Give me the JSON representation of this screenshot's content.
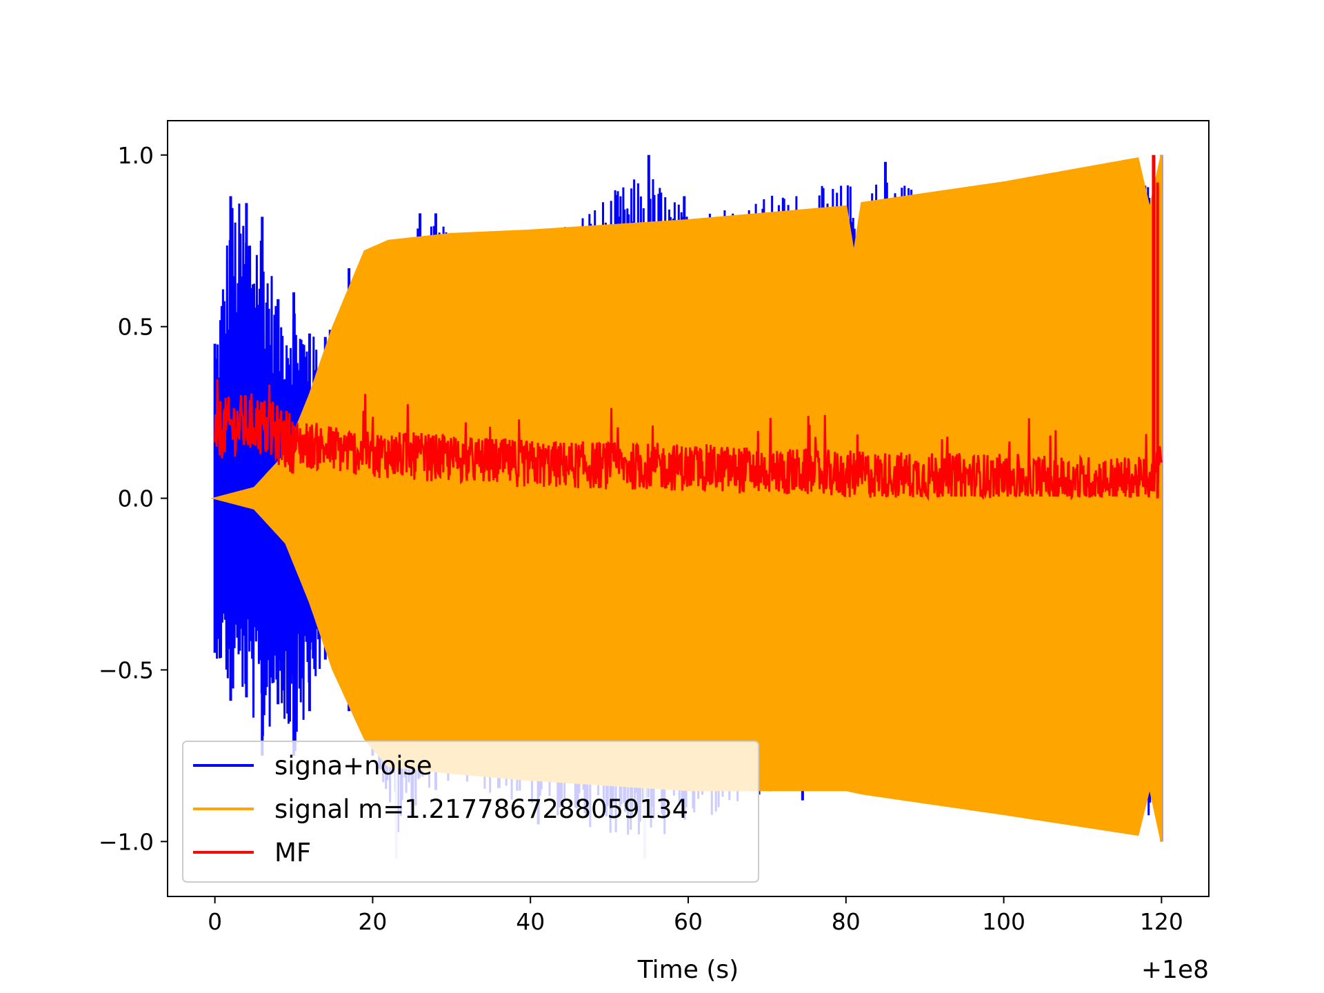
{
  "chart_data": {
    "type": "line",
    "title": "",
    "xlabel": "Time (s)",
    "ylabel": "",
    "x_offset_label": "+1e8",
    "xlim": [
      -6,
      126
    ],
    "ylim": [
      -1.16,
      1.1
    ],
    "grid": false,
    "legend_position": "lower-left",
    "x_ticks": [
      0,
      20,
      40,
      60,
      80,
      100,
      120
    ],
    "x_tick_labels": [
      "0",
      "20",
      "40",
      "60",
      "80",
      "100",
      "120"
    ],
    "y_ticks": [
      -1.0,
      -0.5,
      0.0,
      0.5,
      1.0
    ],
    "y_tick_labels": [
      "−1.0",
      "−0.5",
      "0.0",
      "0.5",
      "1.0"
    ],
    "series": [
      {
        "name": "signa+noise",
        "color": "#0000ff",
        "x_range": [
          0,
          120
        ],
        "envelope_upper": [
          [
            0,
            0.45
          ],
          [
            2,
            0.88
          ],
          [
            4,
            0.86
          ],
          [
            6,
            0.82
          ],
          [
            8,
            0.58
          ],
          [
            10,
            0.6
          ],
          [
            12,
            0.48
          ],
          [
            14,
            0.47
          ],
          [
            17,
            0.67
          ],
          [
            20,
            0.73
          ],
          [
            26,
            0.83
          ],
          [
            28,
            0.83
          ],
          [
            40,
            0.78
          ],
          [
            55,
            1.0
          ],
          [
            59.5,
            0.88
          ],
          [
            85,
            0.98
          ],
          [
            100,
            0.9
          ],
          [
            120,
            1.0
          ]
        ],
        "envelope_lower": [
          [
            0,
            -0.45
          ],
          [
            2,
            -0.59
          ],
          [
            4,
            -0.58
          ],
          [
            6,
            -0.75
          ],
          [
            8,
            -0.6
          ],
          [
            10,
            -0.75
          ],
          [
            12,
            -0.62
          ],
          [
            14,
            -0.47
          ],
          [
            17,
            -0.62
          ],
          [
            20,
            -0.75
          ],
          [
            23,
            -1.05
          ],
          [
            28,
            -0.85
          ],
          [
            41,
            -0.95
          ],
          [
            54.5,
            -1.05
          ],
          [
            74.5,
            -0.88
          ],
          [
            100,
            -0.92
          ],
          [
            120,
            -1.0
          ]
        ]
      },
      {
        "name": "signal m=1.2177867288059134",
        "color": "#ffa500",
        "x_range": [
          0,
          120
        ],
        "envelope_upper": [
          [
            0,
            0.0
          ],
          [
            5,
            0.03
          ],
          [
            9,
            0.13
          ],
          [
            12,
            0.3
          ],
          [
            15,
            0.5
          ],
          [
            19,
            0.72
          ],
          [
            22,
            0.75
          ],
          [
            30,
            0.77
          ],
          [
            40,
            0.78
          ],
          [
            60,
            0.81
          ],
          [
            80,
            0.85
          ],
          [
            81,
            0.71
          ],
          [
            82,
            0.86
          ],
          [
            100,
            0.92
          ],
          [
            117,
            0.99
          ],
          [
            118.5,
            0.84
          ],
          [
            120,
            1.0
          ]
        ],
        "envelope_lower": [
          [
            0,
            0.0
          ],
          [
            5,
            -0.03
          ],
          [
            9,
            -0.13
          ],
          [
            12,
            -0.3
          ],
          [
            15,
            -0.5
          ],
          [
            19,
            -0.7
          ],
          [
            22,
            -0.78
          ],
          [
            30,
            -0.8
          ],
          [
            40,
            -0.82
          ],
          [
            60,
            -0.85
          ],
          [
            80,
            -0.85
          ],
          [
            82,
            -0.86
          ],
          [
            100,
            -0.92
          ],
          [
            117,
            -0.98
          ],
          [
            118.5,
            -0.84
          ],
          [
            120,
            -1.0
          ]
        ]
      },
      {
        "name": "MF",
        "color": "#ff0000",
        "x_range": [
          0,
          120
        ],
        "baseline": [
          [
            0,
            0.2
          ],
          [
            5,
            0.22
          ],
          [
            10,
            0.16
          ],
          [
            20,
            0.13
          ],
          [
            40,
            0.1
          ],
          [
            60,
            0.09
          ],
          [
            80,
            0.07
          ],
          [
            100,
            0.06
          ],
          [
            118,
            0.05
          ],
          [
            119.5,
            0.1
          ],
          [
            120,
            0.15
          ]
        ],
        "peak": {
          "x": 119,
          "y": 1.0
        }
      }
    ],
    "legend": [
      "signa+noise",
      "signal m=1.2177867288059134",
      "MF"
    ]
  }
}
